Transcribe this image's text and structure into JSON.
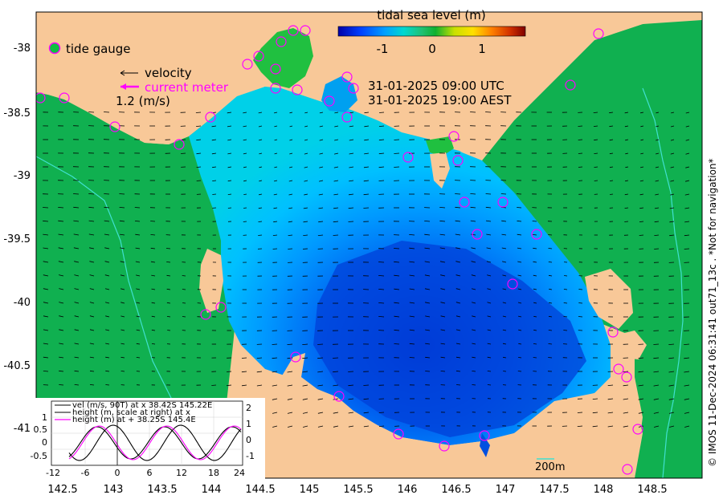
{
  "colorbar": {
    "title": "tidal sea level (m)",
    "tick_labels": [
      "-1",
      "0",
      "1"
    ],
    "colors": [
      "#0000a8",
      "#0040ff",
      "#00b0ff",
      "#00d8c0",
      "#20c070",
      "#10b030",
      "#e8e800",
      "#ff8000",
      "#c02000",
      "#800000"
    ]
  },
  "legend": {
    "tide_gauge": "tide gauge",
    "velocity": "velocity",
    "current_meter": "current meter",
    "scale": "1.2 (m/s)"
  },
  "time": {
    "utc": "31-01-2025 09:00 UTC",
    "local": "31-01-2025 19:00 AEST"
  },
  "axes": {
    "lat_labels": [
      "-38",
      "-38.5",
      "-39",
      "-39.5",
      "-40",
      "-40.5",
      "-41"
    ],
    "lon_labels": [
      "142.5",
      "143",
      "143.5",
      "144",
      "144.5",
      "145",
      "145.5",
      "146",
      "146.5",
      "147",
      "147.5",
      "148",
      "148.5"
    ]
  },
  "scale_bar": "200m",
  "credit": "© IMOS 11-Dec-2024 06:31:41 out71_13c . *Not for navigation*",
  "inset": {
    "legend": [
      "vel (m/s, 90T) at x 38.42S 145.22E",
      "height (m, scale at right) at x",
      "height (m) at + 38.25S 145.4E"
    ],
    "left_ticks": [
      "1",
      "0.5",
      "0",
      "-0.5"
    ],
    "right_ticks": [
      "2",
      "1",
      "0",
      "-1"
    ],
    "x_ticks": [
      "-12",
      "-6",
      "0",
      "6",
      "12",
      "18",
      "24"
    ]
  },
  "colors": {
    "land": "#f8c898",
    "ocean_shelf": "#10b050",
    "isobath": "#40e0d0",
    "gauge": "#ff00ff",
    "arrow": "#000000"
  }
}
